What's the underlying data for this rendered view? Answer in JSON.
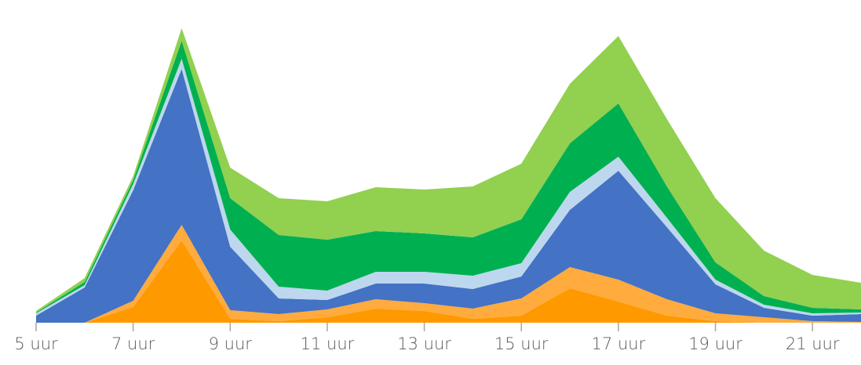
{
  "chart_data": {
    "type": "stacked-area",
    "categories": [
      "5 uur",
      null,
      "7 uur",
      null,
      "9 uur",
      null,
      "11 uur",
      null,
      "13 uur",
      null,
      "15 uur",
      null,
      "17 uur",
      null,
      "19 uur",
      null,
      "21 uur",
      null
    ],
    "series": [
      {
        "color": "#ff9900",
        "values": [
          0,
          0,
          20,
          105,
          5,
          2,
          7,
          18,
          15,
          5,
          9,
          44,
          27,
          9,
          2,
          0,
          0,
          0
        ]
      },
      {
        "color": "#ffab3d",
        "values": [
          0,
          0,
          8,
          20,
          11,
          9,
          10,
          12,
          10,
          13,
          22,
          27,
          28,
          21,
          10,
          7,
          2,
          1
        ]
      },
      {
        "color": "#4472c4",
        "values": [
          9,
          45,
          141,
          199,
          81,
          20,
          12,
          20,
          25,
          25,
          28,
          73,
          139,
          92,
          37,
          12,
          7,
          10
        ]
      },
      {
        "color": "#bdd7ee",
        "values": [
          3,
          3,
          8,
          13,
          22,
          15,
          12,
          15,
          15,
          17,
          17,
          23,
          18,
          12,
          6,
          4,
          3,
          2
        ]
      },
      {
        "color": "#00b050",
        "values": [
          1,
          4,
          5,
          23,
          40,
          66,
          65,
          52,
          49,
          49,
          56,
          62,
          68,
          40,
          22,
          11,
          7,
          4
        ]
      },
      {
        "color": "#92d050",
        "values": [
          2,
          5,
          5,
          16,
          39,
          47,
          49,
          56,
          56,
          65,
          71,
          76,
          86,
          86,
          82,
          58,
          42,
          34
        ]
      }
    ],
    "ylim": [
      0,
      380
    ]
  }
}
